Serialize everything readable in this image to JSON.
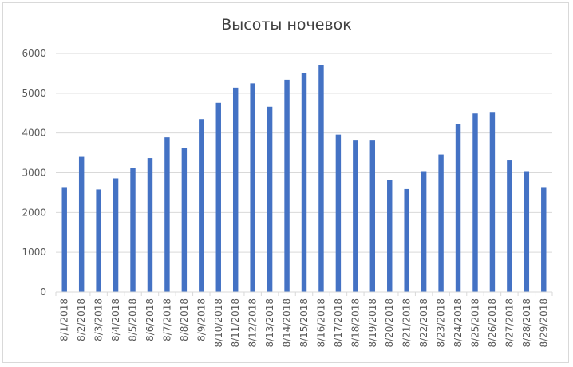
{
  "chart_data": {
    "type": "bar",
    "title": "Высоты ночевок",
    "xlabel": "",
    "ylabel": "",
    "ylim": [
      0,
      6000
    ],
    "yticks": [
      0,
      1000,
      2000,
      3000,
      4000,
      5000,
      6000
    ],
    "grid": true,
    "legend": "none",
    "bar_color": "#4472c4",
    "categories": [
      "8/1/2018",
      "8/2/2018",
      "8/3/2018",
      "8/4/2018",
      "8/5/2018",
      "8/6/2018",
      "8/7/2018",
      "8/8/2018",
      "8/9/2018",
      "8/10/2018",
      "8/11/2018",
      "8/12/2018",
      "8/13/2018",
      "8/14/2018",
      "8/15/2018",
      "8/16/2018",
      "8/17/2018",
      "8/18/2018",
      "8/19/2018",
      "8/20/2018",
      "8/21/2018",
      "8/22/2018",
      "8/23/2018",
      "8/24/2018",
      "8/25/2018",
      "8/26/2018",
      "8/27/2018",
      "8/28/2018",
      "8/29/2018"
    ],
    "values": [
      2620,
      3400,
      2580,
      2860,
      3120,
      3370,
      3890,
      3620,
      4350,
      4760,
      5140,
      5250,
      4660,
      5340,
      5500,
      5700,
      3960,
      3810,
      3810,
      2810,
      2590,
      3040,
      3460,
      4220,
      4490,
      4510,
      3310,
      3040,
      2620
    ]
  }
}
